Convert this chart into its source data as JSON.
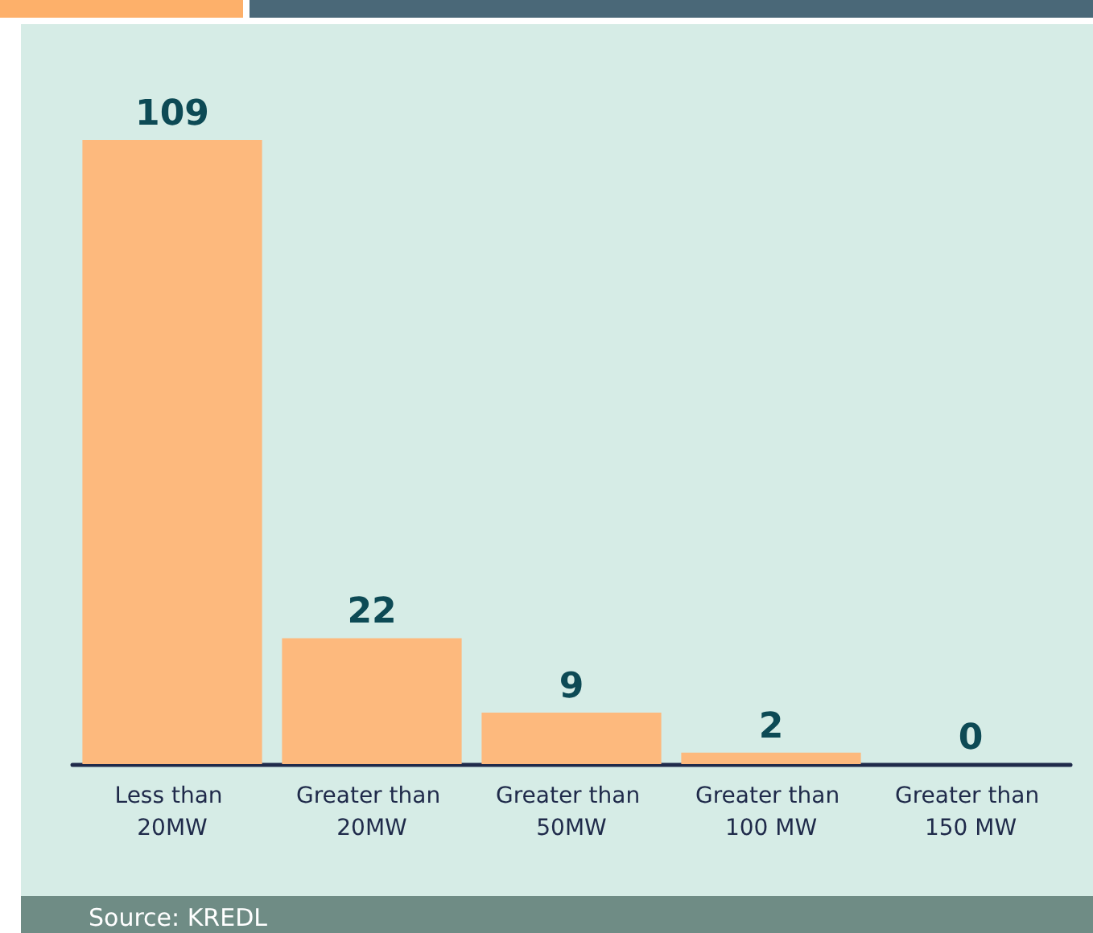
{
  "chart_data": {
    "type": "bar",
    "categories": [
      "Less than 20MW",
      "Greater than 20MW",
      "Greater than 50MW",
      "Greater than 100 MW",
      "Greater than 150 MW"
    ],
    "values": [
      109,
      22,
      9,
      2,
      0
    ],
    "color": "#fdb97d",
    "data_labels": true,
    "annotations": [
      "Source: KREDL"
    ]
  }
}
